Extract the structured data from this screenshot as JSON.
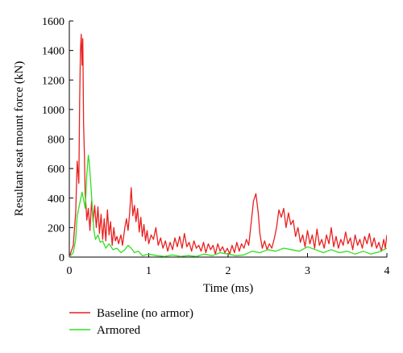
{
  "chart_data": {
    "type": "line",
    "title": "",
    "xlabel": "Time (ms)",
    "ylabel": "Resultant seat mount force (kN)",
    "xlim": [
      0,
      4
    ],
    "ylim": [
      0,
      1600
    ],
    "xticks": [
      0,
      1,
      2,
      3,
      4
    ],
    "yticks": [
      0,
      200,
      400,
      600,
      800,
      1000,
      1200,
      1400,
      1600
    ],
    "grid": false,
    "legend_position": "bottom-left, below plot",
    "series": [
      {
        "name": "Baseline (no armor)",
        "color": "#e8201e",
        "points": [
          [
            0.0,
            0
          ],
          [
            0.05,
            80
          ],
          [
            0.08,
            300
          ],
          [
            0.1,
            650
          ],
          [
            0.12,
            500
          ],
          [
            0.13,
            1050
          ],
          [
            0.14,
            1400
          ],
          [
            0.15,
            1510
          ],
          [
            0.16,
            1300
          ],
          [
            0.17,
            1480
          ],
          [
            0.18,
            900
          ],
          [
            0.19,
            700
          ],
          [
            0.2,
            420
          ],
          [
            0.21,
            350
          ],
          [
            0.22,
            250
          ],
          [
            0.24,
            330
          ],
          [
            0.26,
            180
          ],
          [
            0.28,
            380
          ],
          [
            0.3,
            240
          ],
          [
            0.32,
            350
          ],
          [
            0.34,
            200
          ],
          [
            0.36,
            340
          ],
          [
            0.38,
            160
          ],
          [
            0.4,
            290
          ],
          [
            0.42,
            120
          ],
          [
            0.44,
            260
          ],
          [
            0.46,
            110
          ],
          [
            0.48,
            320
          ],
          [
            0.5,
            150
          ],
          [
            0.52,
            240
          ],
          [
            0.54,
            80
          ],
          [
            0.56,
            200
          ],
          [
            0.58,
            110
          ],
          [
            0.6,
            140
          ],
          [
            0.62,
            90
          ],
          [
            0.65,
            150
          ],
          [
            0.67,
            80
          ],
          [
            0.7,
            200
          ],
          [
            0.72,
            260
          ],
          [
            0.74,
            180
          ],
          [
            0.76,
            300
          ],
          [
            0.78,
            470
          ],
          [
            0.8,
            280
          ],
          [
            0.82,
            350
          ],
          [
            0.84,
            240
          ],
          [
            0.86,
            330
          ],
          [
            0.88,
            170
          ],
          [
            0.9,
            270
          ],
          [
            0.92,
            140
          ],
          [
            0.94,
            220
          ],
          [
            0.96,
            110
          ],
          [
            0.98,
            180
          ],
          [
            1.0,
            90
          ],
          [
            1.03,
            150
          ],
          [
            1.06,
            120
          ],
          [
            1.09,
            200
          ],
          [
            1.12,
            80
          ],
          [
            1.15,
            130
          ],
          [
            1.18,
            60
          ],
          [
            1.21,
            110
          ],
          [
            1.24,
            40
          ],
          [
            1.27,
            100
          ],
          [
            1.3,
            50
          ],
          [
            1.33,
            130
          ],
          [
            1.36,
            70
          ],
          [
            1.39,
            140
          ],
          [
            1.42,
            60
          ],
          [
            1.45,
            160
          ],
          [
            1.48,
            70
          ],
          [
            1.51,
            100
          ],
          [
            1.54,
            40
          ],
          [
            1.57,
            110
          ],
          [
            1.6,
            60
          ],
          [
            1.63,
            80
          ],
          [
            1.66,
            40
          ],
          [
            1.69,
            100
          ],
          [
            1.72,
            30
          ],
          [
            1.75,
            90
          ],
          [
            1.78,
            50
          ],
          [
            1.81,
            80
          ],
          [
            1.84,
            20
          ],
          [
            1.87,
            90
          ],
          [
            1.9,
            40
          ],
          [
            1.93,
            70
          ],
          [
            1.96,
            30
          ],
          [
            1.99,
            60
          ],
          [
            2.02,
            20
          ],
          [
            2.05,
            80
          ],
          [
            2.08,
            30
          ],
          [
            2.11,
            100
          ],
          [
            2.14,
            40
          ],
          [
            2.17,
            90
          ],
          [
            2.2,
            60
          ],
          [
            2.23,
            120
          ],
          [
            2.26,
            80
          ],
          [
            2.29,
            230
          ],
          [
            2.32,
            380
          ],
          [
            2.35,
            430
          ],
          [
            2.38,
            300
          ],
          [
            2.4,
            160
          ],
          [
            2.43,
            60
          ],
          [
            2.46,
            110
          ],
          [
            2.49,
            50
          ],
          [
            2.52,
            90
          ],
          [
            2.55,
            60
          ],
          [
            2.58,
            120
          ],
          [
            2.61,
            200
          ],
          [
            2.64,
            320
          ],
          [
            2.67,
            270
          ],
          [
            2.7,
            330
          ],
          [
            2.73,
            200
          ],
          [
            2.76,
            300
          ],
          [
            2.79,
            220
          ],
          [
            2.82,
            250
          ],
          [
            2.85,
            140
          ],
          [
            2.88,
            200
          ],
          [
            2.91,
            100
          ],
          [
            2.94,
            150
          ],
          [
            2.97,
            70
          ],
          [
            3.0,
            180
          ],
          [
            3.03,
            90
          ],
          [
            3.06,
            150
          ],
          [
            3.09,
            60
          ],
          [
            3.12,
            190
          ],
          [
            3.15,
            80
          ],
          [
            3.18,
            120
          ],
          [
            3.21,
            60
          ],
          [
            3.24,
            150
          ],
          [
            3.27,
            90
          ],
          [
            3.3,
            200
          ],
          [
            3.33,
            70
          ],
          [
            3.36,
            140
          ],
          [
            3.39,
            60
          ],
          [
            3.42,
            120
          ],
          [
            3.45,
            80
          ],
          [
            3.48,
            170
          ],
          [
            3.51,
            90
          ],
          [
            3.54,
            130
          ],
          [
            3.57,
            50
          ],
          [
            3.6,
            150
          ],
          [
            3.63,
            80
          ],
          [
            3.66,
            120
          ],
          [
            3.69,
            60
          ],
          [
            3.72,
            140
          ],
          [
            3.75,
            90
          ],
          [
            3.78,
            160
          ],
          [
            3.81,
            70
          ],
          [
            3.84,
            130
          ],
          [
            3.87,
            60
          ],
          [
            3.9,
            100
          ],
          [
            3.93,
            40
          ],
          [
            3.96,
            120
          ],
          [
            3.98,
            60
          ],
          [
            4.0,
            150
          ]
        ]
      },
      {
        "name": "Armored",
        "color": "#33dd22",
        "points": [
          [
            0.0,
            0
          ],
          [
            0.05,
            30
          ],
          [
            0.08,
            120
          ],
          [
            0.1,
            280
          ],
          [
            0.13,
            360
          ],
          [
            0.16,
            440
          ],
          [
            0.18,
            390
          ],
          [
            0.2,
            330
          ],
          [
            0.22,
            560
          ],
          [
            0.24,
            690
          ],
          [
            0.25,
            650
          ],
          [
            0.27,
            500
          ],
          [
            0.29,
            330
          ],
          [
            0.31,
            180
          ],
          [
            0.33,
            120
          ],
          [
            0.36,
            150
          ],
          [
            0.39,
            100
          ],
          [
            0.42,
            110
          ],
          [
            0.46,
            60
          ],
          [
            0.5,
            90
          ],
          [
            0.55,
            50
          ],
          [
            0.6,
            60
          ],
          [
            0.65,
            30
          ],
          [
            0.7,
            50
          ],
          [
            0.74,
            80
          ],
          [
            0.78,
            60
          ],
          [
            0.82,
            30
          ],
          [
            0.87,
            40
          ],
          [
            0.92,
            10
          ],
          [
            1.0,
            20
          ],
          [
            1.1,
            10
          ],
          [
            1.2,
            5
          ],
          [
            1.3,
            15
          ],
          [
            1.4,
            5
          ],
          [
            1.5,
            10
          ],
          [
            1.6,
            5
          ],
          [
            1.7,
            20
          ],
          [
            1.8,
            10
          ],
          [
            1.9,
            30
          ],
          [
            2.0,
            20
          ],
          [
            2.1,
            10
          ],
          [
            2.2,
            15
          ],
          [
            2.3,
            40
          ],
          [
            2.4,
            30
          ],
          [
            2.5,
            50
          ],
          [
            2.6,
            40
          ],
          [
            2.7,
            60
          ],
          [
            2.8,
            50
          ],
          [
            2.9,
            40
          ],
          [
            3.0,
            70
          ],
          [
            3.1,
            50
          ],
          [
            3.2,
            30
          ],
          [
            3.3,
            50
          ],
          [
            3.4,
            30
          ],
          [
            3.5,
            40
          ],
          [
            3.6,
            20
          ],
          [
            3.7,
            40
          ],
          [
            3.8,
            20
          ],
          [
            3.9,
            35
          ],
          [
            4.0,
            60
          ]
        ]
      }
    ]
  }
}
